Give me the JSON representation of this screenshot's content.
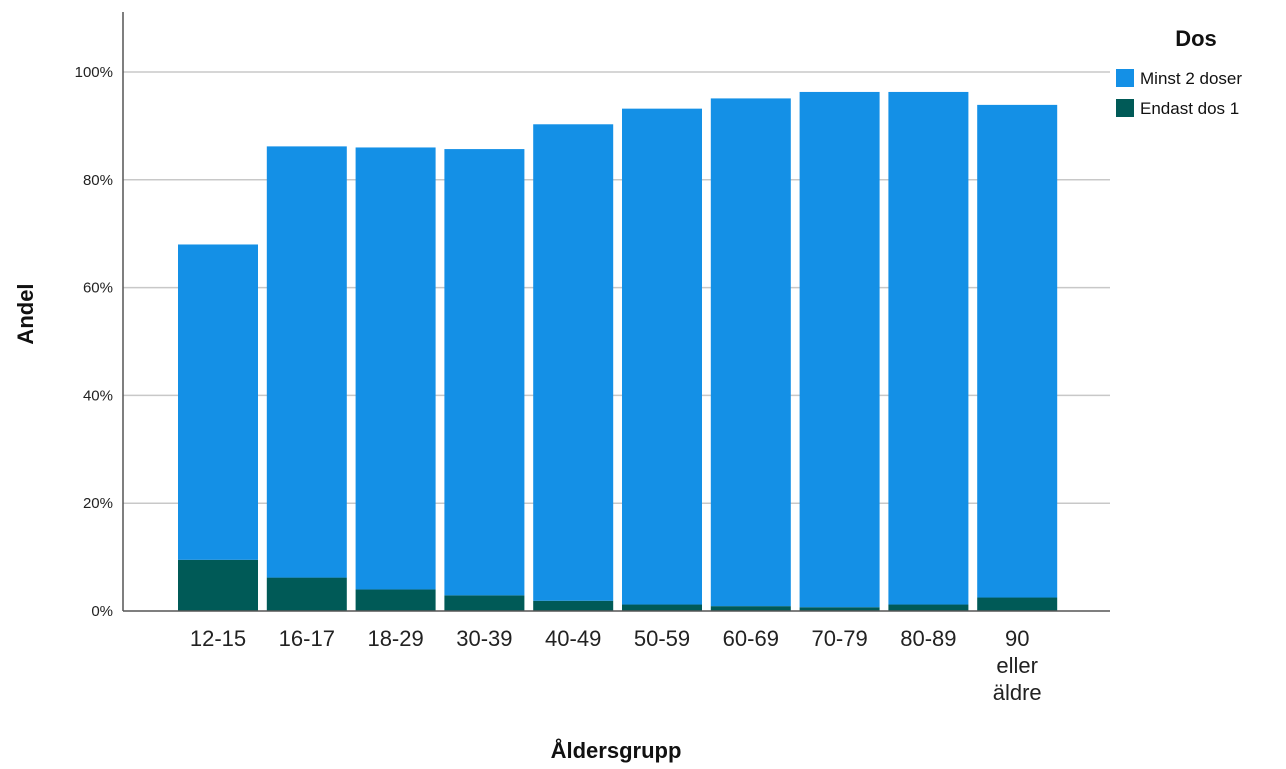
{
  "chart_data": {
    "type": "bar",
    "stacked": true,
    "xlabel": "Åldersgrupp",
    "ylabel": "Andel",
    "ylim": [
      0,
      1.1
    ],
    "yticks": [
      "0%",
      "20%",
      "40%",
      "60%",
      "80%",
      "100%"
    ],
    "grid": "horizontal",
    "legend_position": "top-right",
    "legend_title": "Dos",
    "categories": [
      [
        "12-15"
      ],
      [
        "16-17"
      ],
      [
        "18-29"
      ],
      [
        "30-39"
      ],
      [
        "40-49"
      ],
      [
        "50-59"
      ],
      [
        "60-69"
      ],
      [
        "70-79"
      ],
      [
        "80-89"
      ],
      [
        "90",
        "eller",
        "äldre"
      ]
    ],
    "series": [
      {
        "name": "Endast dos 1",
        "color": "#005a57",
        "values": [
          0.095,
          0.062,
          0.04,
          0.029,
          0.019,
          0.012,
          0.009,
          0.007,
          0.012,
          0.025
        ]
      },
      {
        "name": "Minst 2 doser",
        "color": "#1490e6",
        "values": [
          0.585,
          0.8,
          0.82,
          0.828,
          0.884,
          0.92,
          0.942,
          0.956,
          0.951,
          0.914
        ]
      }
    ],
    "legend_order": [
      "Minst 2 doser",
      "Endast dos 1"
    ]
  }
}
